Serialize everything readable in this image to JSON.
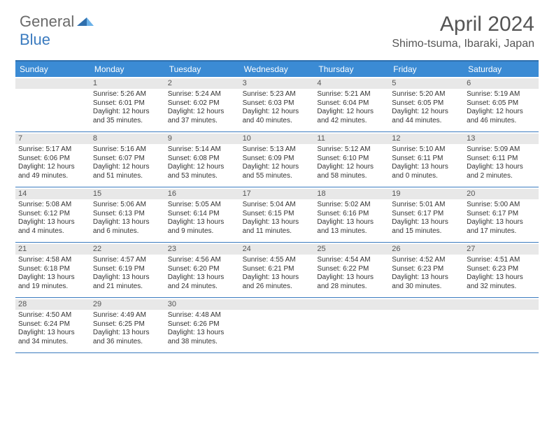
{
  "brand": {
    "general": "General",
    "blue": "Blue"
  },
  "title": "April 2024",
  "location": "Shimo-tsuma, Ibaraki, Japan",
  "day_names": [
    "Sunday",
    "Monday",
    "Tuesday",
    "Wednesday",
    "Thursday",
    "Friday",
    "Saturday"
  ],
  "colors": {
    "header_bg": "#3b8bd4",
    "rule": "#3b7bbf",
    "daynum_bg": "#e8e8e8",
    "text": "#333333",
    "title": "#555555"
  },
  "weeks": [
    [
      {
        "n": "",
        "sr": "",
        "ss": "",
        "d1": "",
        "d2": ""
      },
      {
        "n": "1",
        "sr": "Sunrise: 5:26 AM",
        "ss": "Sunset: 6:01 PM",
        "d1": "Daylight: 12 hours",
        "d2": "and 35 minutes."
      },
      {
        "n": "2",
        "sr": "Sunrise: 5:24 AM",
        "ss": "Sunset: 6:02 PM",
        "d1": "Daylight: 12 hours",
        "d2": "and 37 minutes."
      },
      {
        "n": "3",
        "sr": "Sunrise: 5:23 AM",
        "ss": "Sunset: 6:03 PM",
        "d1": "Daylight: 12 hours",
        "d2": "and 40 minutes."
      },
      {
        "n": "4",
        "sr": "Sunrise: 5:21 AM",
        "ss": "Sunset: 6:04 PM",
        "d1": "Daylight: 12 hours",
        "d2": "and 42 minutes."
      },
      {
        "n": "5",
        "sr": "Sunrise: 5:20 AM",
        "ss": "Sunset: 6:05 PM",
        "d1": "Daylight: 12 hours",
        "d2": "and 44 minutes."
      },
      {
        "n": "6",
        "sr": "Sunrise: 5:19 AM",
        "ss": "Sunset: 6:05 PM",
        "d1": "Daylight: 12 hours",
        "d2": "and 46 minutes."
      }
    ],
    [
      {
        "n": "7",
        "sr": "Sunrise: 5:17 AM",
        "ss": "Sunset: 6:06 PM",
        "d1": "Daylight: 12 hours",
        "d2": "and 49 minutes."
      },
      {
        "n": "8",
        "sr": "Sunrise: 5:16 AM",
        "ss": "Sunset: 6:07 PM",
        "d1": "Daylight: 12 hours",
        "d2": "and 51 minutes."
      },
      {
        "n": "9",
        "sr": "Sunrise: 5:14 AM",
        "ss": "Sunset: 6:08 PM",
        "d1": "Daylight: 12 hours",
        "d2": "and 53 minutes."
      },
      {
        "n": "10",
        "sr": "Sunrise: 5:13 AM",
        "ss": "Sunset: 6:09 PM",
        "d1": "Daylight: 12 hours",
        "d2": "and 55 minutes."
      },
      {
        "n": "11",
        "sr": "Sunrise: 5:12 AM",
        "ss": "Sunset: 6:10 PM",
        "d1": "Daylight: 12 hours",
        "d2": "and 58 minutes."
      },
      {
        "n": "12",
        "sr": "Sunrise: 5:10 AM",
        "ss": "Sunset: 6:11 PM",
        "d1": "Daylight: 13 hours",
        "d2": "and 0 minutes."
      },
      {
        "n": "13",
        "sr": "Sunrise: 5:09 AM",
        "ss": "Sunset: 6:11 PM",
        "d1": "Daylight: 13 hours",
        "d2": "and 2 minutes."
      }
    ],
    [
      {
        "n": "14",
        "sr": "Sunrise: 5:08 AM",
        "ss": "Sunset: 6:12 PM",
        "d1": "Daylight: 13 hours",
        "d2": "and 4 minutes."
      },
      {
        "n": "15",
        "sr": "Sunrise: 5:06 AM",
        "ss": "Sunset: 6:13 PM",
        "d1": "Daylight: 13 hours",
        "d2": "and 6 minutes."
      },
      {
        "n": "16",
        "sr": "Sunrise: 5:05 AM",
        "ss": "Sunset: 6:14 PM",
        "d1": "Daylight: 13 hours",
        "d2": "and 9 minutes."
      },
      {
        "n": "17",
        "sr": "Sunrise: 5:04 AM",
        "ss": "Sunset: 6:15 PM",
        "d1": "Daylight: 13 hours",
        "d2": "and 11 minutes."
      },
      {
        "n": "18",
        "sr": "Sunrise: 5:02 AM",
        "ss": "Sunset: 6:16 PM",
        "d1": "Daylight: 13 hours",
        "d2": "and 13 minutes."
      },
      {
        "n": "19",
        "sr": "Sunrise: 5:01 AM",
        "ss": "Sunset: 6:17 PM",
        "d1": "Daylight: 13 hours",
        "d2": "and 15 minutes."
      },
      {
        "n": "20",
        "sr": "Sunrise: 5:00 AM",
        "ss": "Sunset: 6:17 PM",
        "d1": "Daylight: 13 hours",
        "d2": "and 17 minutes."
      }
    ],
    [
      {
        "n": "21",
        "sr": "Sunrise: 4:58 AM",
        "ss": "Sunset: 6:18 PM",
        "d1": "Daylight: 13 hours",
        "d2": "and 19 minutes."
      },
      {
        "n": "22",
        "sr": "Sunrise: 4:57 AM",
        "ss": "Sunset: 6:19 PM",
        "d1": "Daylight: 13 hours",
        "d2": "and 21 minutes."
      },
      {
        "n": "23",
        "sr": "Sunrise: 4:56 AM",
        "ss": "Sunset: 6:20 PM",
        "d1": "Daylight: 13 hours",
        "d2": "and 24 minutes."
      },
      {
        "n": "24",
        "sr": "Sunrise: 4:55 AM",
        "ss": "Sunset: 6:21 PM",
        "d1": "Daylight: 13 hours",
        "d2": "and 26 minutes."
      },
      {
        "n": "25",
        "sr": "Sunrise: 4:54 AM",
        "ss": "Sunset: 6:22 PM",
        "d1": "Daylight: 13 hours",
        "d2": "and 28 minutes."
      },
      {
        "n": "26",
        "sr": "Sunrise: 4:52 AM",
        "ss": "Sunset: 6:23 PM",
        "d1": "Daylight: 13 hours",
        "d2": "and 30 minutes."
      },
      {
        "n": "27",
        "sr": "Sunrise: 4:51 AM",
        "ss": "Sunset: 6:23 PM",
        "d1": "Daylight: 13 hours",
        "d2": "and 32 minutes."
      }
    ],
    [
      {
        "n": "28",
        "sr": "Sunrise: 4:50 AM",
        "ss": "Sunset: 6:24 PM",
        "d1": "Daylight: 13 hours",
        "d2": "and 34 minutes."
      },
      {
        "n": "29",
        "sr": "Sunrise: 4:49 AM",
        "ss": "Sunset: 6:25 PM",
        "d1": "Daylight: 13 hours",
        "d2": "and 36 minutes."
      },
      {
        "n": "30",
        "sr": "Sunrise: 4:48 AM",
        "ss": "Sunset: 6:26 PM",
        "d1": "Daylight: 13 hours",
        "d2": "and 38 minutes."
      },
      {
        "n": "",
        "sr": "",
        "ss": "",
        "d1": "",
        "d2": ""
      },
      {
        "n": "",
        "sr": "",
        "ss": "",
        "d1": "",
        "d2": ""
      },
      {
        "n": "",
        "sr": "",
        "ss": "",
        "d1": "",
        "d2": ""
      },
      {
        "n": "",
        "sr": "",
        "ss": "",
        "d1": "",
        "d2": ""
      }
    ]
  ]
}
